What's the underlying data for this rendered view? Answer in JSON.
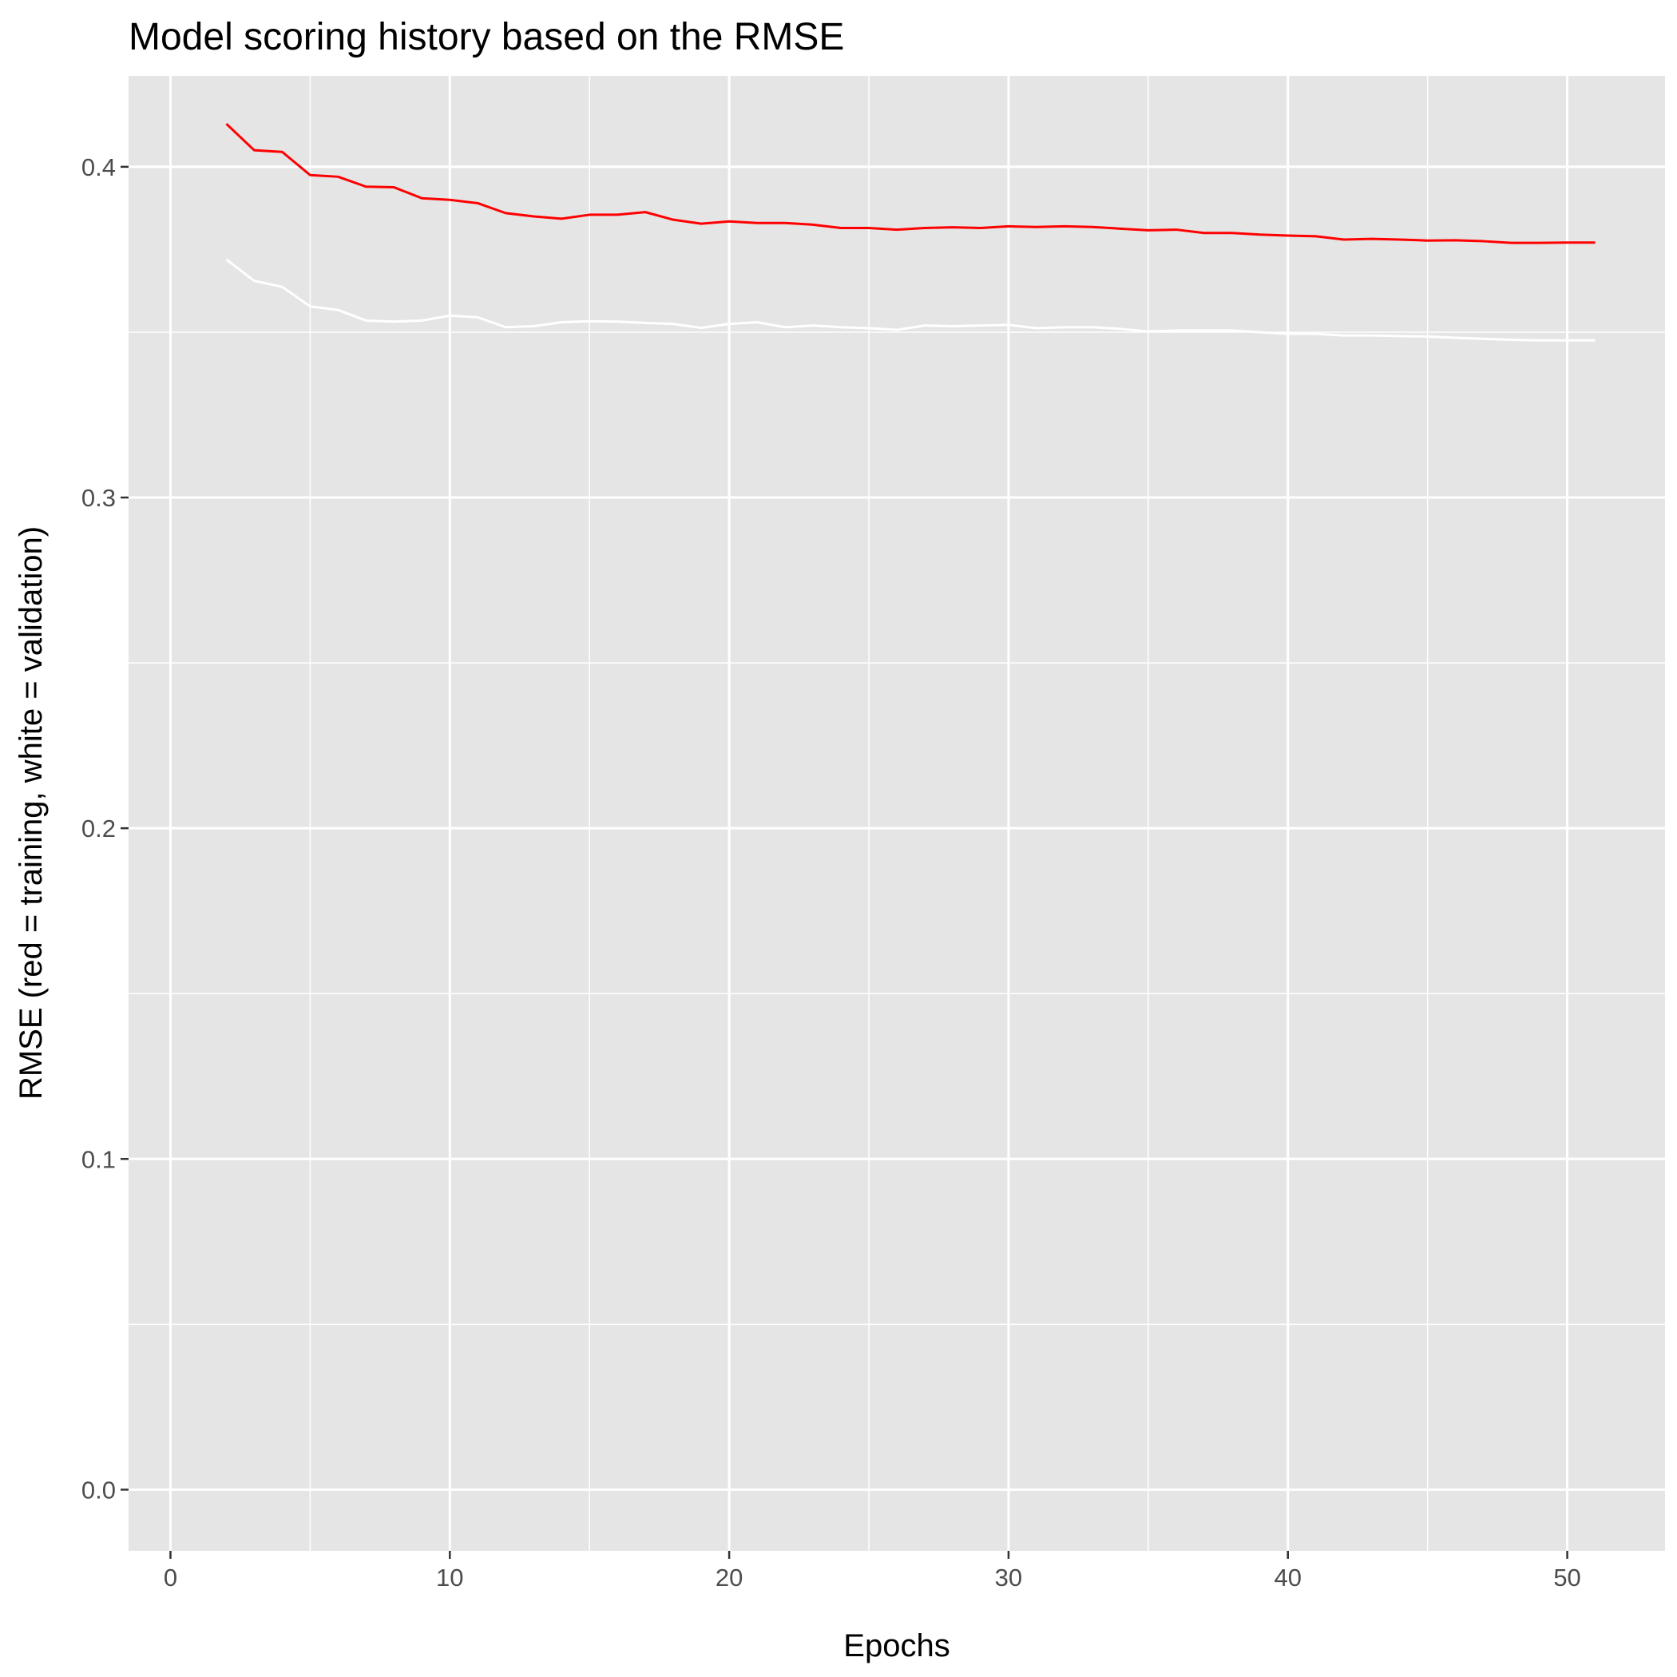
{
  "chart_data": {
    "type": "line",
    "title": "Model scoring history based on the RMSE",
    "xlabel": "Epochs",
    "ylabel": "RMSE (red = training, white = validation)",
    "xlim": [
      -1.5,
      53.5
    ],
    "ylim": [
      -0.0185,
      0.4275
    ],
    "x_ticks": [
      0,
      10,
      20,
      30,
      40,
      50
    ],
    "x_tick_labels": [
      "0",
      "10",
      "20",
      "30",
      "40",
      "50"
    ],
    "y_ticks": [
      0.0,
      0.1,
      0.2,
      0.3,
      0.4
    ],
    "y_tick_labels": [
      "0.0",
      "0.1",
      "0.2",
      "0.3",
      "0.4"
    ],
    "grid": true,
    "panel_background": "#e5e5e5",
    "grid_color": "#ffffff",
    "x": [
      2,
      3,
      4,
      5,
      6,
      7,
      8,
      9,
      10,
      11,
      12,
      13,
      14,
      15,
      16,
      17,
      18,
      19,
      20,
      21,
      22,
      23,
      24,
      25,
      26,
      27,
      28,
      29,
      30,
      31,
      32,
      33,
      34,
      35,
      36,
      37,
      38,
      39,
      40,
      41,
      42,
      43,
      44,
      45,
      46,
      47,
      48,
      49,
      50,
      51
    ],
    "series": [
      {
        "color": "#ff0000",
        "values": [
          0.413,
          0.405,
          0.4045,
          0.3975,
          0.397,
          0.394,
          0.3938,
          0.3905,
          0.39,
          0.389,
          0.386,
          0.385,
          0.3843,
          0.3855,
          0.3855,
          0.3863,
          0.384,
          0.3828,
          0.3835,
          0.383,
          0.383,
          0.3825,
          0.3815,
          0.3815,
          0.381,
          0.3815,
          0.3817,
          0.3815,
          0.382,
          0.3818,
          0.382,
          0.3818,
          0.3813,
          0.3808,
          0.381,
          0.38,
          0.38,
          0.3795,
          0.3792,
          0.379,
          0.378,
          0.3782,
          0.378,
          0.3777,
          0.3778,
          0.3775,
          0.377,
          0.377,
          0.3771,
          0.3771
        ]
      },
      {
        "color": "#ffffff",
        "values": [
          0.372,
          0.3655,
          0.3637,
          0.3578,
          0.3567,
          0.3535,
          0.3532,
          0.3535,
          0.355,
          0.3545,
          0.3515,
          0.3518,
          0.353,
          0.3533,
          0.3532,
          0.3528,
          0.3525,
          0.3513,
          0.3525,
          0.353,
          0.3515,
          0.352,
          0.3515,
          0.3512,
          0.3507,
          0.352,
          0.3518,
          0.352,
          0.3522,
          0.3512,
          0.3515,
          0.3515,
          0.351,
          0.3502,
          0.3505,
          0.3505,
          0.3505,
          0.35,
          0.3495,
          0.3495,
          0.349,
          0.349,
          0.3488,
          0.3487,
          0.3483,
          0.348,
          0.3477,
          0.3475,
          0.3475,
          0.3475
        ]
      }
    ]
  }
}
